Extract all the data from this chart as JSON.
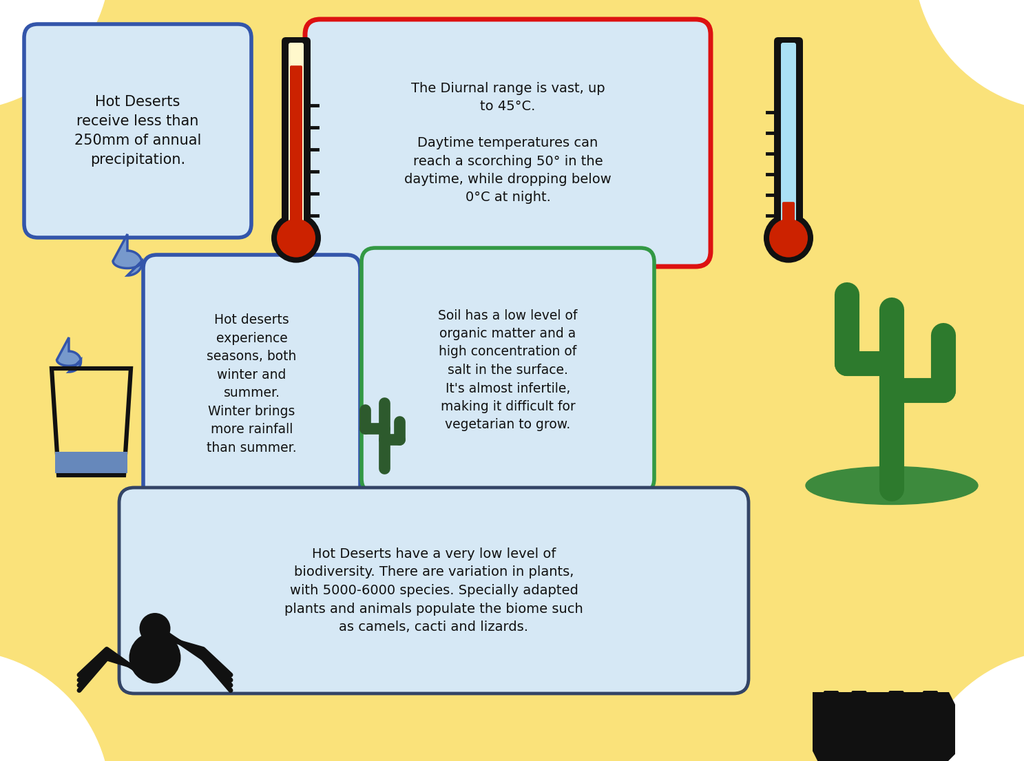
{
  "bg_color": "#FAE27A",
  "box1_text": "Hot Deserts\nreceive less than\n250mm of annual\nprecipitation.",
  "box1_bg": "#D6E8F5",
  "box1_border": "#3355AA",
  "box2_text": "The Diurnal range is vast, up\nto 45°C.\n\nDaytime temperatures can\nreach a scorching 50° in the\ndaytime, while dropping below\n0°C at night.",
  "box2_bg": "#D6E8F5",
  "box2_border": "#DD1111",
  "box3_text": "Hot deserts\nexperience\nseasons, both\nwinter and\nsummer.\nWinter brings\nmore rainfall\nthan summer.",
  "box3_bg": "#D6E8F5",
  "box3_border": "#3355AA",
  "box4_text": "Soil has a low level of\norganic matter and a\nhigh concentration of\nsalt in the surface.\nIt's almost infertile,\nmaking it difficult for\nvegetarian to grow.",
  "box4_bg": "#D6E8F5",
  "box4_border": "#339944",
  "box5_text": "Hot Deserts have a very low level of\nbiodiversity. There are variation in plants,\nwith 5000-6000 species. Specially adapted\nplants and animals populate the biome such\nas camels, cacti and lizards.",
  "box5_bg": "#D6E8F5",
  "box5_border": "#334466",
  "text_color": "#111111",
  "drop_color": "#7799CC",
  "drop_border": "#3355AA",
  "thermo_red": "#CC2200",
  "thermo_black": "#111111",
  "thermo_cream": "#FFF8CC",
  "thermo_blue_fill": "#AAE0F5",
  "cactus_color": "#2D7A2D",
  "ground_color": "#3D8B3D",
  "spider_color": "#111111",
  "camel_color": "#111111"
}
